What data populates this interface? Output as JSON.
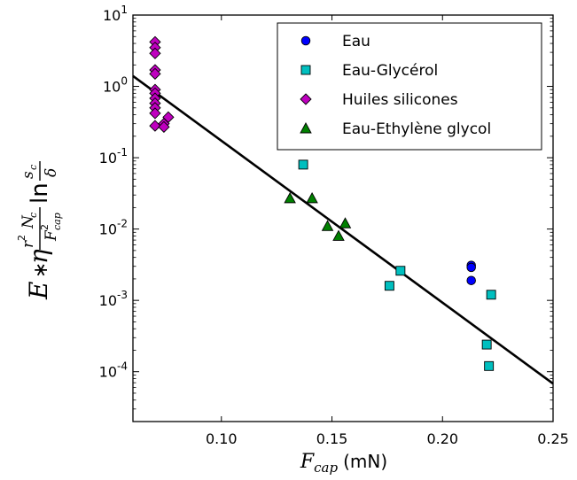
{
  "chart_data": {
    "type": "scatter",
    "y_scale": "log",
    "xlim": [
      0.06,
      0.25
    ],
    "ylim": [
      2e-05,
      10
    ],
    "x_ticks": [
      {
        "value": 0.1,
        "label": "0.10"
      },
      {
        "value": 0.15,
        "label": "0.15"
      },
      {
        "value": 0.2,
        "label": "0.20"
      },
      {
        "value": 0.25,
        "label": "0.25"
      }
    ],
    "y_ticks": [
      {
        "value": 10,
        "base": "10",
        "exp": "1"
      },
      {
        "value": 1,
        "base": "10",
        "exp": "0"
      },
      {
        "value": 0.1,
        "base": "10",
        "exp": "-1"
      },
      {
        "value": 0.01,
        "base": "10",
        "exp": "-2"
      },
      {
        "value": 0.001,
        "base": "10",
        "exp": "-3"
      },
      {
        "value": 0.0001,
        "base": "10",
        "exp": "-4"
      }
    ],
    "xlabel": {
      "math": "F",
      "sub": "cap",
      "unit": "(mN)"
    },
    "ylabel": {
      "prefix": "E",
      "star": "∗",
      "eta": "η",
      "num_r": "r",
      "num_r_exp": "2",
      "num_N": "N",
      "num_N_sub": "c",
      "den_F": "F",
      "den_F_exp": "2",
      "den_F_sub": "cap",
      "ln": "ln",
      "ln_num": "s",
      "ln_num_sub": "c",
      "ln_den": "δ"
    },
    "legend_position": "top-right",
    "series": [
      {
        "name": "Eau",
        "marker": "circle",
        "color": "#0000ff",
        "points": [
          [
            0.213,
            0.0031
          ],
          [
            0.213,
            0.0029
          ],
          [
            0.213,
            0.0019
          ]
        ]
      },
      {
        "name": "Eau-Glycérol",
        "marker": "square",
        "color": "#00bfbf",
        "points": [
          [
            0.137,
            0.08
          ],
          [
            0.176,
            0.0016
          ],
          [
            0.181,
            0.0026
          ],
          [
            0.22,
            0.00024
          ],
          [
            0.222,
            0.0012
          ],
          [
            0.221,
            0.00012
          ]
        ]
      },
      {
        "name": "Huiles silicones",
        "marker": "diamond",
        "color": "#bf00bf",
        "points": [
          [
            0.07,
            4.2
          ],
          [
            0.07,
            3.5
          ],
          [
            0.07,
            2.9
          ],
          [
            0.07,
            1.7
          ],
          [
            0.07,
            1.5
          ],
          [
            0.07,
            0.9
          ],
          [
            0.07,
            0.8
          ],
          [
            0.07,
            0.68
          ],
          [
            0.07,
            0.58
          ],
          [
            0.07,
            0.5
          ],
          [
            0.07,
            0.42
          ],
          [
            0.07,
            0.28
          ],
          [
            0.074,
            0.3
          ],
          [
            0.074,
            0.27
          ],
          [
            0.076,
            0.37
          ]
        ]
      },
      {
        "name": "Eau-Ethylène glycol",
        "marker": "triangle",
        "color": "#008000",
        "points": [
          [
            0.131,
            0.027
          ],
          [
            0.141,
            0.027
          ],
          [
            0.148,
            0.011
          ],
          [
            0.153,
            0.008
          ],
          [
            0.156,
            0.012
          ]
        ]
      }
    ],
    "fit_line": {
      "x": [
        0.06,
        0.25
      ],
      "y": [
        1.4,
        6.8e-05
      ],
      "color": "#000000"
    }
  }
}
